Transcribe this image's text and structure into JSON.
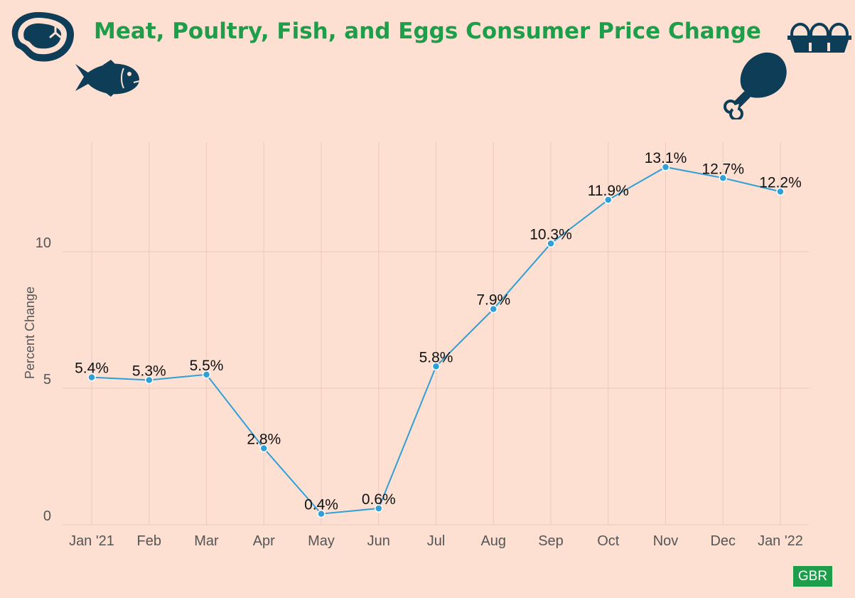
{
  "title": "Meat, Poultry, Fish, and Eggs Consumer Price Change",
  "logo_text": "GBR",
  "colors": {
    "background": "#fde0d2",
    "title": "#1e9e4a",
    "line": "#2f9fd8",
    "icon": "#0e3d57",
    "grid": "#ecc9b9",
    "logo_bg": "#1e9e4a"
  },
  "icons": [
    "steak-icon",
    "fish-icon",
    "egg-carton-icon",
    "chicken-leg-icon"
  ],
  "chart_data": {
    "type": "line",
    "ylabel": "Percent Change",
    "xlabel": "",
    "categories": [
      "Jan '21",
      "Feb",
      "Mar",
      "Apr",
      "May",
      "Jun",
      "Jul",
      "Aug",
      "Sep",
      "Oct",
      "Nov",
      "Dec",
      "Jan '22"
    ],
    "values": [
      5.4,
      5.3,
      5.5,
      2.8,
      0.4,
      0.6,
      5.8,
      7.9,
      10.3,
      11.9,
      13.1,
      12.7,
      12.2
    ],
    "data_labels": [
      "5.4%",
      "5.3%",
      "5.5%",
      "2.8%",
      "0.4%",
      "0.6%",
      "5.8%",
      "7.9%",
      "10.3%",
      "11.9%",
      "13.1%",
      "12.7%",
      "12.2%"
    ],
    "yticks": [
      0,
      5,
      10
    ],
    "ytick_labels": [
      "0",
      "5",
      "10"
    ],
    "ylim": [
      0,
      14
    ],
    "grid": true
  }
}
